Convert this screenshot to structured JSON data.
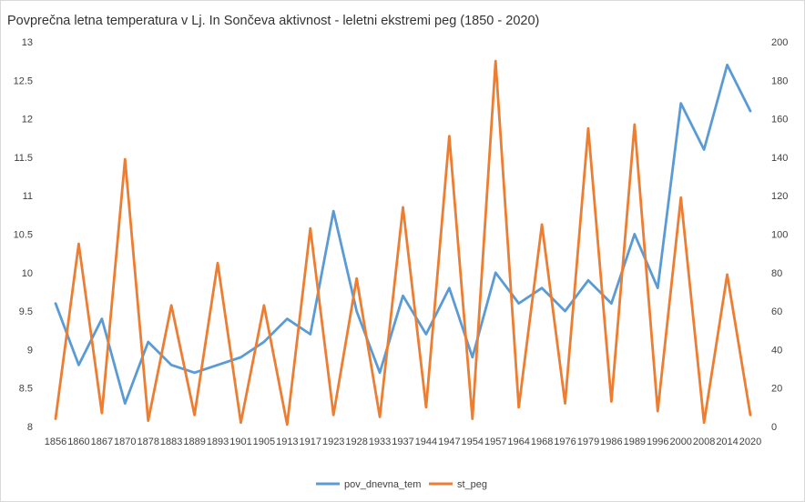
{
  "chart_data": {
    "type": "line",
    "title": "Povprečna  letna temperatura  v Lj. In Sončeva aktivnost - leletni  ekstremi peg (1850 - 2020)",
    "categories": [
      "1856",
      "1860",
      "1867",
      "1870",
      "1878",
      "1883",
      "1889",
      "1893",
      "1901",
      "1905",
      "1913",
      "1917",
      "1923",
      "1928",
      "1933",
      "1937",
      "1944",
      "1947",
      "1954",
      "1957",
      "1964",
      "1968",
      "1976",
      "1979",
      "1986",
      "1989",
      "1996",
      "2000",
      "2008",
      "2014",
      "2020"
    ],
    "series": [
      {
        "name": "pov_dnevna_tem",
        "axis": "left",
        "color": "#5b9bd5",
        "values": [
          9.6,
          8.8,
          9.4,
          8.3,
          9.1,
          8.8,
          8.7,
          8.8,
          8.9,
          9.1,
          9.4,
          9.2,
          10.8,
          9.5,
          8.7,
          9.7,
          9.2,
          9.8,
          8.9,
          10.0,
          9.6,
          9.8,
          9.5,
          9.9,
          9.6,
          10.5,
          9.8,
          12.2,
          11.6,
          12.7,
          12.1
        ]
      },
      {
        "name": "st_peg",
        "axis": "right",
        "color": "#ed7d31",
        "values": [
          4,
          95,
          7,
          139,
          3,
          63,
          6,
          85,
          2,
          63,
          1,
          103,
          6,
          77,
          5,
          114,
          10,
          151,
          4,
          190,
          10,
          105,
          12,
          155,
          13,
          157,
          8,
          119,
          2,
          79,
          6
        ]
      }
    ],
    "y_left": {
      "min": 8,
      "max": 13,
      "ticks": [
        "8",
        "8.5",
        "9",
        "9.5",
        "10",
        "10.5",
        "11",
        "11.5",
        "12",
        "12.5",
        "13"
      ]
    },
    "y_right": {
      "min": 0,
      "max": 200,
      "ticks": [
        "0",
        "20",
        "40",
        "60",
        "80",
        "100",
        "120",
        "140",
        "160",
        "180",
        "200"
      ]
    },
    "grid": false,
    "legend_position": "bottom"
  }
}
